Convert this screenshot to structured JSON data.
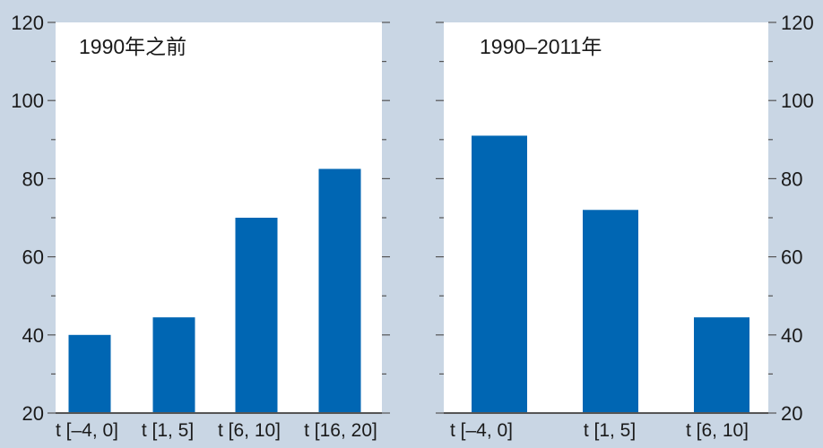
{
  "colors": {
    "background": "#c9d6e4",
    "panel": "#ffffff",
    "bar": "#0066b3",
    "axis": "#555555"
  },
  "chart_data": [
    {
      "type": "bar",
      "title": "1990年之前",
      "categories": [
        "t [–4, 0]",
        "t [1, 5]",
        "t [6, 10]",
        "t [16, 20]"
      ],
      "values": [
        40,
        44.5,
        70,
        82.5
      ],
      "ylim": [
        20,
        120
      ],
      "yticks": [
        "20",
        "40",
        "60",
        "80",
        "100",
        "120"
      ],
      "y_axis_side": "left",
      "grid": false
    },
    {
      "type": "bar",
      "title": "1990–2011年",
      "categories": [
        "t [–4, 0]",
        "t [1, 5]",
        "t [6, 10]"
      ],
      "values": [
        91,
        72,
        44.5
      ],
      "ylim": [
        20,
        120
      ],
      "yticks": [
        "20",
        "40",
        "60",
        "80",
        "100",
        "120"
      ],
      "y_axis_side": "right",
      "grid": false
    }
  ]
}
